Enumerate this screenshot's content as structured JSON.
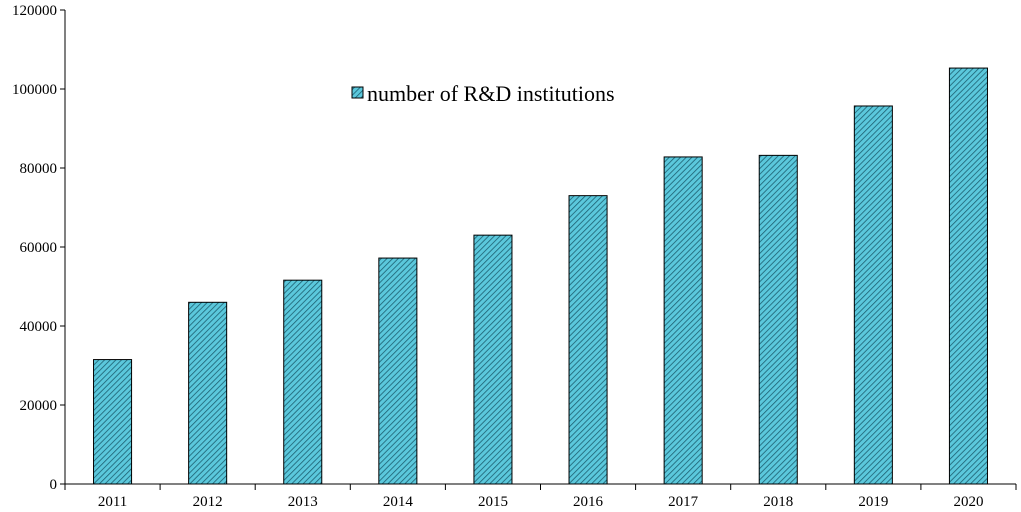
{
  "chart_data": {
    "type": "bar",
    "categories": [
      "2011",
      "2012",
      "2013",
      "2014",
      "2015",
      "2016",
      "2017",
      "2018",
      "2019",
      "2020"
    ],
    "series": [
      {
        "name": "number of R&D institutions",
        "values": [
          31500,
          46000,
          51600,
          57200,
          63000,
          73000,
          82800,
          83200,
          95700,
          105300
        ],
        "fill": "#5bc8dc",
        "hatch": "#1c5f70"
      }
    ],
    "ylim": [
      0,
      120000
    ],
    "yticks": [
      0,
      20000,
      40000,
      60000,
      80000,
      100000,
      120000
    ],
    "grid": false,
    "legend_position": "top-center",
    "title": "",
    "xlabel": "",
    "ylabel": ""
  }
}
